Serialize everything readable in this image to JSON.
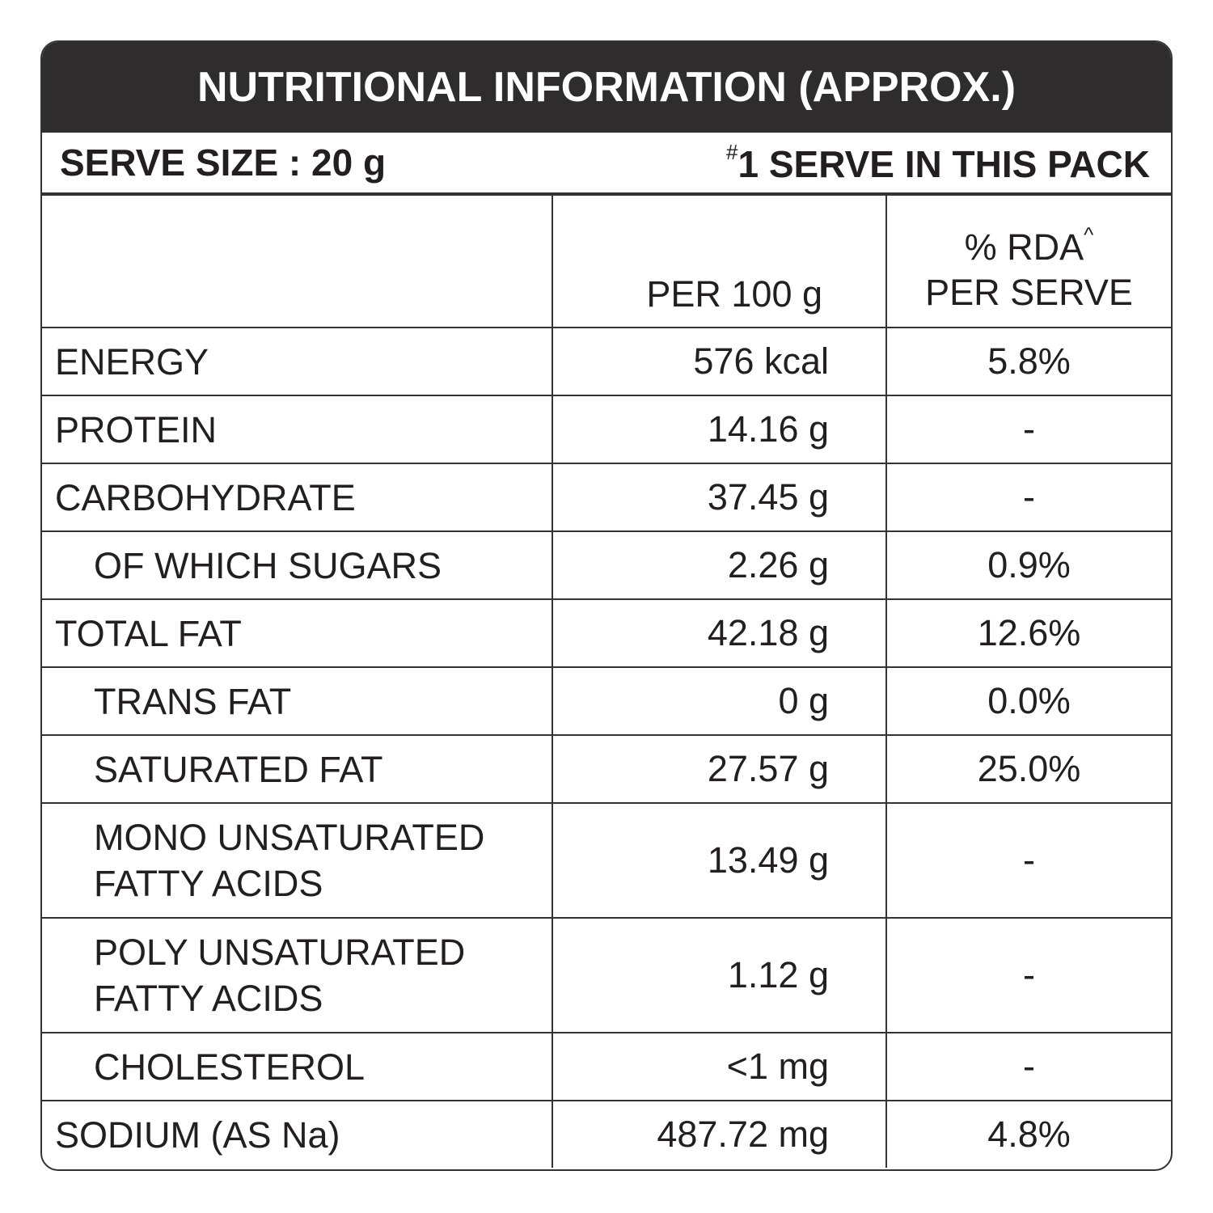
{
  "header": {
    "title": "NUTRITIONAL INFORMATION (APPROX.)"
  },
  "serve": {
    "size": "SERVE SIZE : 20 g",
    "pack_mark": "#",
    "pack": "1 SERVE IN THIS PACK"
  },
  "table": {
    "columns": {
      "per_100g": "PER 100 g",
      "rda": "% RDA",
      "rda_mark": "^",
      "rda_sub": "PER SERVE"
    },
    "rows": [
      {
        "label": "ENERGY",
        "per_100g": "576 kcal",
        "rda": "5.8%"
      },
      {
        "label": "PROTEIN",
        "per_100g": "14.16 g",
        "rda": "-"
      },
      {
        "label": "CARBOHYDRATE",
        "per_100g": "37.45 g",
        "rda": "-",
        "sub_rows": [
          {
            "label": "OF WHICH SUGARS",
            "per_100g": "2.26 g",
            "rda": "0.9%"
          }
        ]
      },
      {
        "label": "TOTAL FAT",
        "per_100g": "42.18 g",
        "rda": "12.6%",
        "sub_rows": [
          {
            "label": "TRANS FAT",
            "per_100g": "0 g",
            "rda": "0.0%"
          },
          {
            "label": "SATURATED FAT",
            "per_100g": "27.57 g",
            "rda": "25.0%"
          },
          {
            "label": "MONO UNSATURATED FATTY ACIDS",
            "per_100g": "13.49 g",
            "rda": "-"
          },
          {
            "label": "POLY UNSATURATED FATTY ACIDS",
            "per_100g": "1.12 g",
            "rda": "-"
          },
          {
            "label": "CHOLESTEROL",
            "per_100g": "<1 mg",
            "rda": "-"
          }
        ]
      },
      {
        "label": "SODIUM (AS Na)",
        "per_100g": "487.72 mg",
        "rda": "4.8%"
      }
    ]
  }
}
